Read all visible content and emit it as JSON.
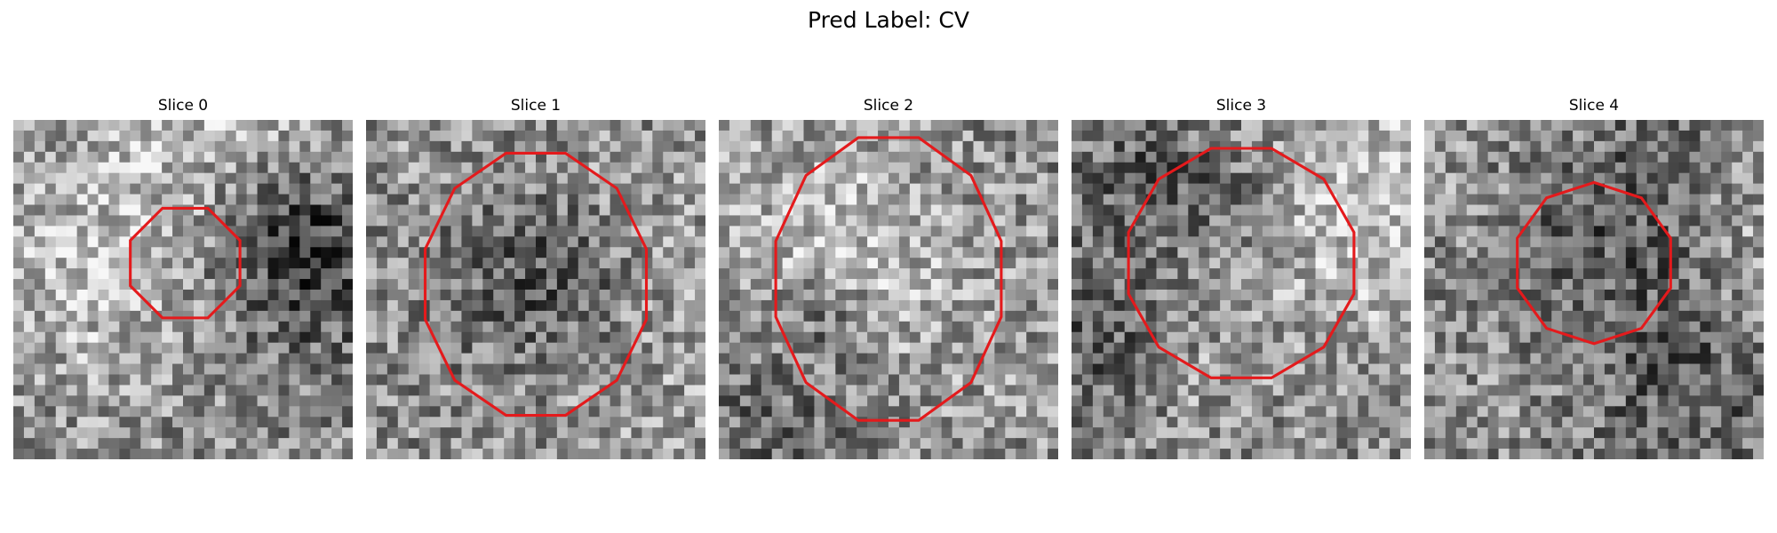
{
  "figure": {
    "title": "Pred Label: CV",
    "contour_color": "#e41a1c"
  },
  "slices": [
    {
      "title": "Slice 0"
    },
    {
      "title": "Slice 1"
    },
    {
      "title": "Slice 2"
    },
    {
      "title": "Slice 3"
    },
    {
      "title": "Slice 4"
    }
  ]
}
